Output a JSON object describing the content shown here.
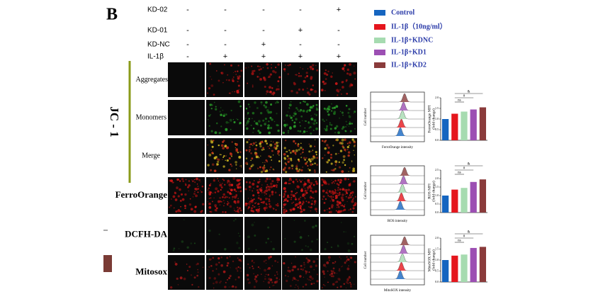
{
  "panel_label": "B",
  "treatments": [
    {
      "label": "KD-02",
      "signs": [
        "-",
        "-",
        "-",
        "-",
        "+"
      ]
    },
    {
      "label": "KD-01",
      "signs": [
        "-",
        "-",
        "-",
        "+",
        "-"
      ]
    },
    {
      "label": "KD-NC",
      "signs": [
        "-",
        "-",
        "+",
        "-",
        "-"
      ]
    },
    {
      "label": "IL-1β",
      "signs": [
        "-",
        "+",
        "+",
        "+",
        "+"
      ]
    }
  ],
  "legend": [
    {
      "name": "Control",
      "color": "#1565c0"
    },
    {
      "name": "IL-1β（10ng/ml）",
      "color": "#e5161d"
    },
    {
      "name": "IL-1β+KDNC",
      "color": "#a6dbb0"
    },
    {
      "name": "IL-1β+KD1",
      "color": "#9c4fb3"
    },
    {
      "name": "IL-1β+KD2",
      "color": "#8a3b3b"
    }
  ],
  "jc1_label": "JC - 1",
  "row_labels": [
    "Aggregates",
    "Monomers",
    "Merge",
    "FerroOrange",
    "DCFH-DA",
    "Mitosox"
  ],
  "flow_panels": [
    {
      "y_label": "Cell number",
      "x_label": "FerroOrange intensity"
    },
    {
      "y_label": "Cell number",
      "x_label": "ROS intensity"
    },
    {
      "y_label": "Cell number",
      "x_label": "MitoSOX intensity"
    }
  ],
  "bar_charts": [
    {
      "y_label": "FerroOrange MFI",
      "y_label_2": "(fold change)",
      "values": [
        1.0,
        1.25,
        1.35,
        1.45,
        1.55
      ],
      "ylim": [
        0,
        2
      ],
      "yticks": [
        {
          "value": 0,
          "label": "0.0"
        },
        {
          "value": 0.5,
          "label": "0.5"
        },
        {
          "value": 1,
          "label": "1.0"
        },
        {
          "value": 1.5,
          "label": "1.5"
        },
        {
          "value": 2,
          "label": "2.0"
        }
      ],
      "significance": [
        "&",
        "#",
        "ns"
      ]
    },
    {
      "y_label": "ROS MFI",
      "y_label_2": "(fold change)",
      "values": [
        1.0,
        1.35,
        1.45,
        1.8,
        1.95
      ],
      "ylim": [
        0,
        2.5
      ],
      "yticks": [
        {
          "value": 0,
          "label": "0.0"
        },
        {
          "value": 0.5,
          "label": "0.5"
        },
        {
          "value": 1,
          "label": "1.0"
        },
        {
          "value": 1.5,
          "label": "1.5"
        },
        {
          "value": 2,
          "label": "2.0"
        },
        {
          "value": 2.5,
          "label": "2.5"
        }
      ],
      "significance": [
        "&",
        "#",
        "ns"
      ]
    },
    {
      "y_label": "MitoSOX MFI",
      "y_label_2": "(fold change)",
      "values": [
        1.0,
        1.2,
        1.25,
        1.55,
        1.6
      ],
      "ylim": [
        0,
        2
      ],
      "yticks": [
        {
          "value": 0,
          "label": "0.0"
        },
        {
          "value": 0.5,
          "label": "0.5"
        },
        {
          "value": 1,
          "label": "1.0"
        },
        {
          "value": 1.5,
          "label": "1.5"
        },
        {
          "value": 2,
          "label": "2.0"
        }
      ],
      "significance": [
        "&",
        "#",
        "ns"
      ]
    }
  ]
}
